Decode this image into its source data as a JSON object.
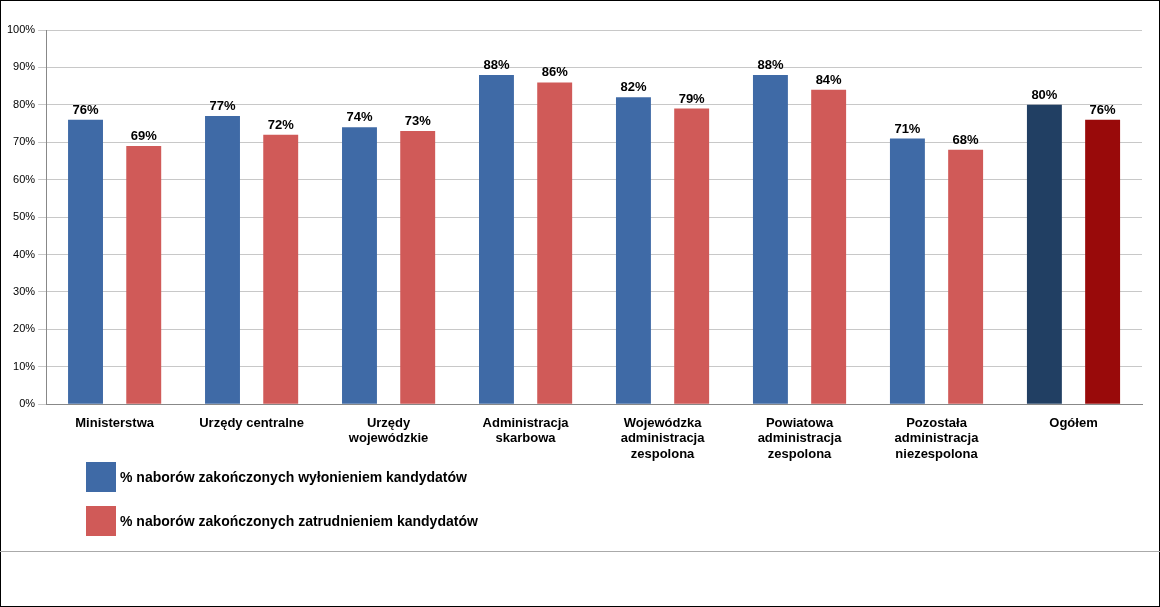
{
  "chart_data": {
    "type": "bar",
    "categories": [
      "Ministerstwa",
      "Urzędy centralne",
      "Urzędy wojewódzkie",
      "Administracja skarbowa",
      "Wojewódzka administracja zespolona",
      "Powiatowa administracja zespolona",
      "Pozostała administracja niezespolona",
      "Ogółem"
    ],
    "series": [
      {
        "name": "% naborów zakończonych wyłonieniem kandydatów",
        "color": "#3f6aa6",
        "colors": [
          "#3f6aa6",
          "#3f6aa6",
          "#3f6aa6",
          "#3f6aa6",
          "#3f6aa6",
          "#3f6aa6",
          "#3f6aa6",
          "#213f63"
        ],
        "values": [
          76,
          77,
          74,
          88,
          82,
          88,
          71,
          80
        ],
        "value_labels": [
          "76%",
          "77%",
          "74%",
          "88%",
          "82%",
          "88%",
          "71%",
          "80%"
        ]
      },
      {
        "name": "% naborów zakończonych zatrudnieniem kandydatów",
        "color": "#d05a58",
        "colors": [
          "#d05a58",
          "#d05a58",
          "#d05a58",
          "#d05a58",
          "#d05a58",
          "#d05a58",
          "#d05a58",
          "#990a0a"
        ],
        "values": [
          69,
          72,
          73,
          86,
          79,
          84,
          68,
          76
        ],
        "value_labels": [
          "69%",
          "72%",
          "73%",
          "86%",
          "79%",
          "84%",
          "68%",
          "76%"
        ]
      }
    ],
    "ylim": [
      0,
      100
    ],
    "yticks": [
      {
        "value": 0,
        "label": "0%"
      },
      {
        "value": 10,
        "label": "10%"
      },
      {
        "value": 20,
        "label": "20%"
      },
      {
        "value": 30,
        "label": "30%"
      },
      {
        "value": 40,
        "label": "40%"
      },
      {
        "value": 50,
        "label": "50%"
      },
      {
        "value": 60,
        "label": "60%"
      },
      {
        "value": 70,
        "label": "70%"
      },
      {
        "value": 80,
        "label": "80%"
      },
      {
        "value": 90,
        "label": "90%"
      },
      {
        "value": 100,
        "label": "100%"
      }
    ],
    "grid": "y",
    "legend": "bottom left"
  }
}
